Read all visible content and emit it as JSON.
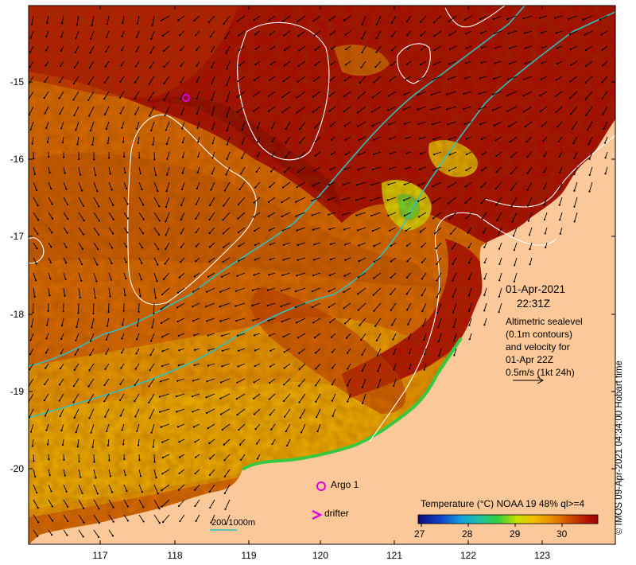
{
  "map": {
    "lon_ticks": [
      "117",
      "118",
      "119",
      "120",
      "121",
      "122",
      "123"
    ],
    "lat_ticks": [
      "-15",
      "-16",
      "-17",
      "-18",
      "-19",
      "-20"
    ],
    "date": "01-Apr-2021",
    "time": "22:31Z",
    "description_lines": [
      "Altimetric sealevel",
      "(0.1m contours)",
      "and velocity for",
      "01-Apr 22Z",
      "0.5m/s (1kt 24h)"
    ],
    "credit": "© IMOS 09-Apr-2021 04:34:00 Hobart time",
    "argo_label": "Argo 1",
    "drifter_label": "drifter",
    "isobath_label": "200  1000m",
    "colorbar": {
      "title": "Temperature (°C) NOAA 19 48% ql>=4",
      "ticks": [
        "27",
        "28",
        "29",
        "30"
      ]
    },
    "colors": {
      "land": "#fbc89a",
      "warm_dark": "#a50800",
      "warm_mid": "#c83c00",
      "orange": "#e07a00",
      "yellow": "#f2c000",
      "green": "#3fd046",
      "isobath": "#30c0c0",
      "contour": "#ffffff",
      "argo": "#e000e0"
    }
  }
}
